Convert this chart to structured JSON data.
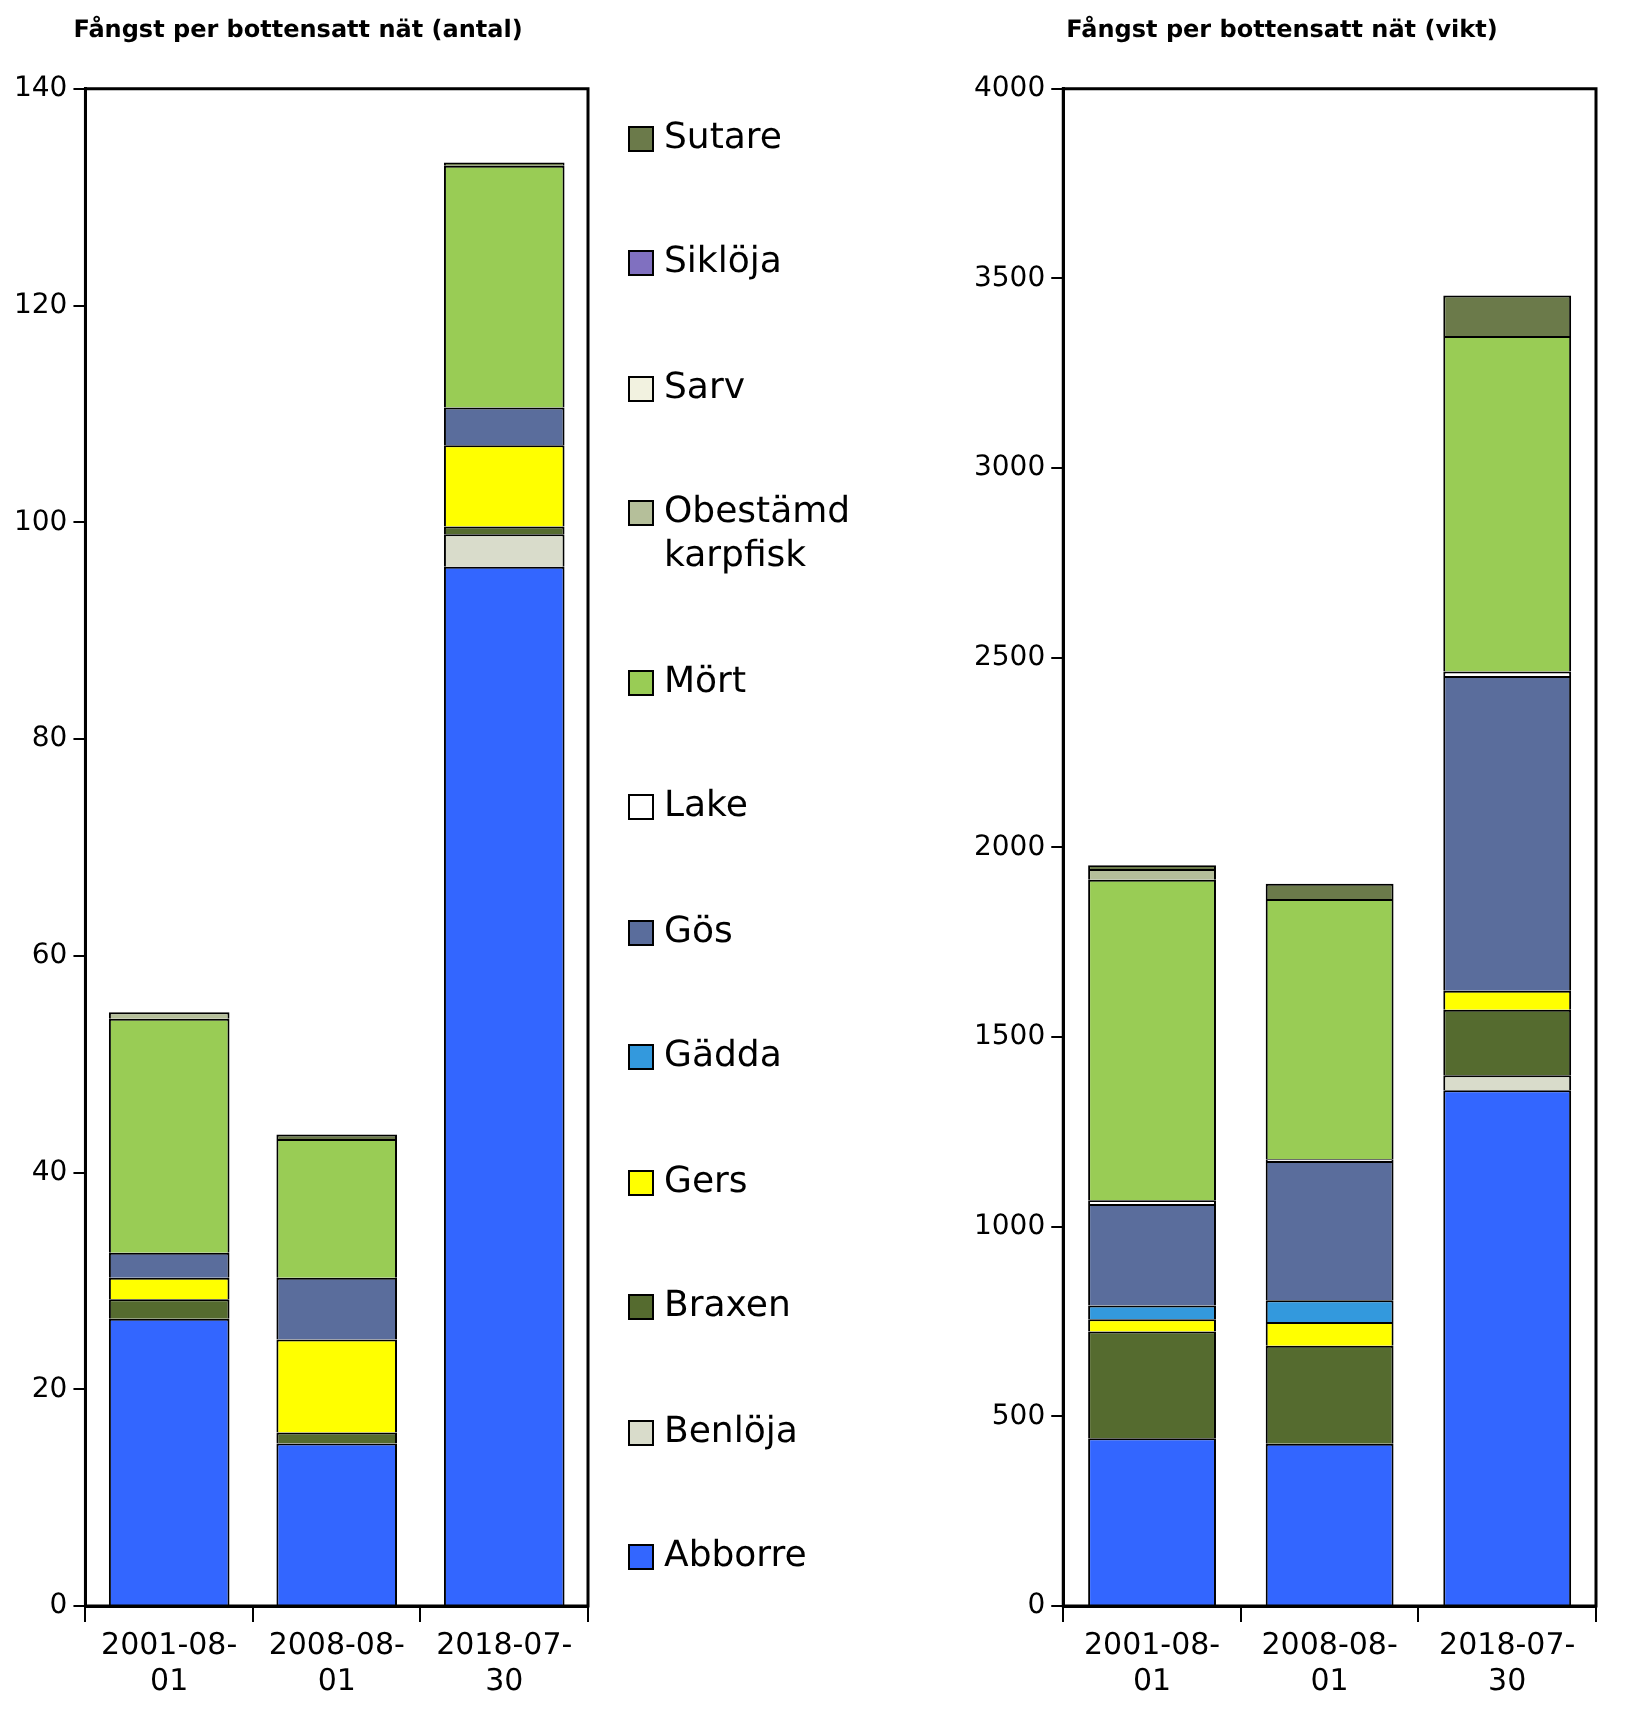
{
  "chart_data": [
    {
      "type": "bar",
      "title": "Fångst per bottensatt nät (antal)",
      "categories": [
        "2001-08-01",
        "2008-08-01",
        "2018-07-30"
      ],
      "stacked": true,
      "ylim": [
        0,
        140
      ],
      "yticks": [
        0,
        20,
        40,
        60,
        80,
        100,
        120,
        140
      ],
      "grid": false,
      "legend": "right",
      "series": [
        {
          "name": "Abborre",
          "color": "#3366ff",
          "values": [
            26.5,
            15.0,
            95.9
          ]
        },
        {
          "name": "Benlöja",
          "color": "#d9dccb",
          "values": [
            0,
            0,
            3.0
          ]
        },
        {
          "name": "Braxen",
          "color": "#556b2f",
          "values": [
            1.8,
            1.0,
            0.7
          ]
        },
        {
          "name": "Gers",
          "color": "#ffff00",
          "values": [
            2.0,
            8.6,
            7.5
          ]
        },
        {
          "name": "Gädda",
          "color": "#3399dd",
          "values": [
            0,
            0,
            0
          ]
        },
        {
          "name": "Gös",
          "color": "#5a6d9c",
          "values": [
            2.3,
            5.7,
            3.5
          ]
        },
        {
          "name": "Lake",
          "color": "#ffffff",
          "values": [
            0,
            0,
            0
          ]
        },
        {
          "name": "Mört",
          "color": "#99cc55",
          "values": [
            21.6,
            12.8,
            22.3
          ]
        },
        {
          "name": "Obestämd karpfisk",
          "color": "#b5bf9a",
          "values": [
            0.6,
            0,
            0
          ]
        },
        {
          "name": "Sarv",
          "color": "#f2f2e0",
          "values": [
            0,
            0,
            0
          ]
        },
        {
          "name": "Siklöja",
          "color": "#8070c0",
          "values": [
            0,
            0,
            0
          ]
        },
        {
          "name": "Sutare",
          "color": "#6b7a4a",
          "values": [
            0,
            0.4,
            0.3
          ]
        }
      ]
    },
    {
      "type": "bar",
      "title": "Fångst per bottensatt nät (vikt)",
      "categories": [
        "2001-08-01",
        "2008-08-01",
        "2018-07-30"
      ],
      "stacked": true,
      "ylim": [
        0,
        4000
      ],
      "yticks": [
        0,
        500,
        1000,
        1500,
        2000,
        2500,
        3000,
        3500,
        4000
      ],
      "grid": false,
      "legend": false,
      "series": [
        {
          "color": "#3366ff",
          "values": [
            442,
            428,
            1360
          ]
        },
        {
          "color": "#d9dccb",
          "values": [
            0,
            0,
            39
          ]
        },
        {
          "color": "#556b2f",
          "values": [
            282,
            258,
            173
          ]
        },
        {
          "color": "#ffff00",
          "values": [
            32,
            63,
            50
          ]
        },
        {
          "color": "#3399dd",
          "values": [
            36,
            57,
            0
          ]
        },
        {
          "color": "#5a6d9c",
          "values": [
            268,
            367,
            830
          ]
        },
        {
          "color": "#ffffff",
          "values": [
            10,
            5,
            12
          ]
        },
        {
          "color": "#99cc55",
          "values": [
            845,
            686,
            884
          ]
        },
        {
          "color": "#b5bf9a",
          "values": [
            28,
            0,
            0
          ]
        },
        {
          "color": "#f2f2e0",
          "values": [
            0,
            0,
            0
          ]
        },
        {
          "color": "#8070c0",
          "values": [
            0,
            0,
            0
          ]
        },
        {
          "color": "#6b7a4a",
          "values": [
            10,
            40,
            107
          ]
        }
      ]
    }
  ]
}
